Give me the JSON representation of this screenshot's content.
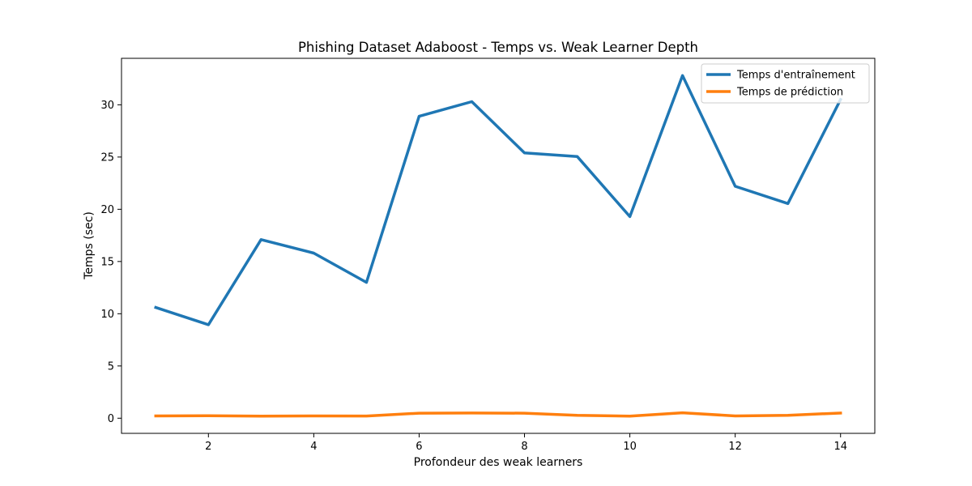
{
  "chart_data": {
    "type": "line",
    "title": "Phishing Dataset Adaboost - Temps vs. Weak Learner Depth",
    "xlabel": "Profondeur des weak learners",
    "ylabel": "Temps (sec)",
    "x": [
      1,
      2,
      3,
      4,
      5,
      6,
      7,
      8,
      9,
      10,
      11,
      12,
      13,
      14
    ],
    "xlim": [
      0.35,
      14.65
    ],
    "ylim": [
      -1.45,
      34.45
    ],
    "xticks": [
      2,
      4,
      6,
      8,
      10,
      12,
      14
    ],
    "yticks": [
      0,
      5,
      10,
      15,
      20,
      25,
      30
    ],
    "grid": false,
    "legend_position": "top-right",
    "series": [
      {
        "name": "Temps d'entraînement",
        "color": "#1f77b4",
        "values": [
          10.6,
          8.95,
          17.1,
          15.8,
          13.0,
          28.9,
          30.3,
          25.4,
          25.05,
          19.3,
          32.8,
          22.2,
          20.55,
          30.5
        ]
      },
      {
        "name": "Temps de prédiction",
        "color": "#ff7f0e",
        "values": [
          0.22,
          0.23,
          0.2,
          0.22,
          0.21,
          0.48,
          0.5,
          0.48,
          0.27,
          0.2,
          0.52,
          0.22,
          0.28,
          0.5
        ]
      }
    ]
  }
}
